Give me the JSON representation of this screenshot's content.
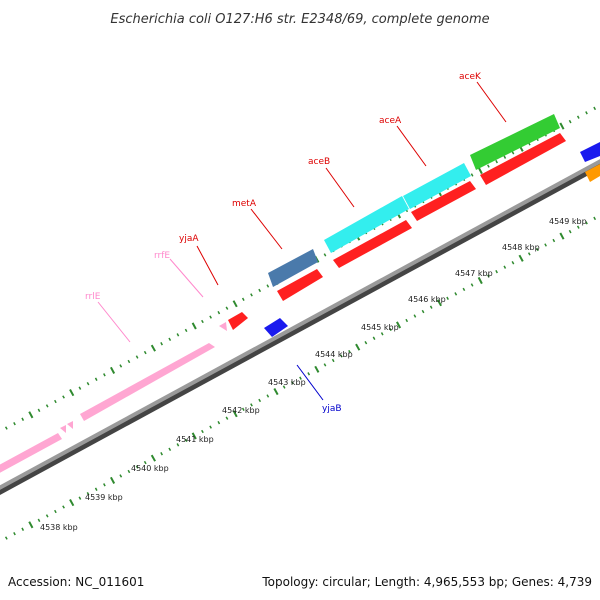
{
  "title": "Escherichia coli O127:H6 str. E2348/69, complete genome",
  "footer": {
    "accession": "Accession: NC_011601",
    "stats": "Topology: circular; Length: 4,965,553 bp; Genes: 4,739"
  },
  "scale_labels": [
    "4538 kbp",
    "4539 kbp",
    "4540 kbp",
    "4541 kbp",
    "4542 kbp",
    "4543 kbp",
    "4544 kbp",
    "4545 kbp",
    "4546 kbp",
    "4547 kbp",
    "4548 kbp",
    "4549 kbp"
  ],
  "gene_labels": [
    {
      "text": "rrlE",
      "color": "#ff88cc"
    },
    {
      "text": "rrfE",
      "color": "#ff88cc"
    },
    {
      "text": "yjaA",
      "color": "#dd0000"
    },
    {
      "text": "metA",
      "color": "#dd0000"
    },
    {
      "text": "aceB",
      "color": "#dd0000"
    },
    {
      "text": "aceA",
      "color": "#dd0000"
    },
    {
      "text": "aceK",
      "color": "#dd0000"
    },
    {
      "text": "yjaB",
      "color": "#0000cc"
    }
  ],
  "colors": {
    "backbone": "#8a8a8a",
    "tick": "#2f8a2f",
    "rRNA": "#ffa6d2",
    "cds_red": "#ff2020",
    "cds_blue": "#1a1aee",
    "metA": "#4a7aab",
    "ace_cyan": "#33eeee",
    "aceK_green": "#33cc33",
    "orange": "#ff9900"
  }
}
